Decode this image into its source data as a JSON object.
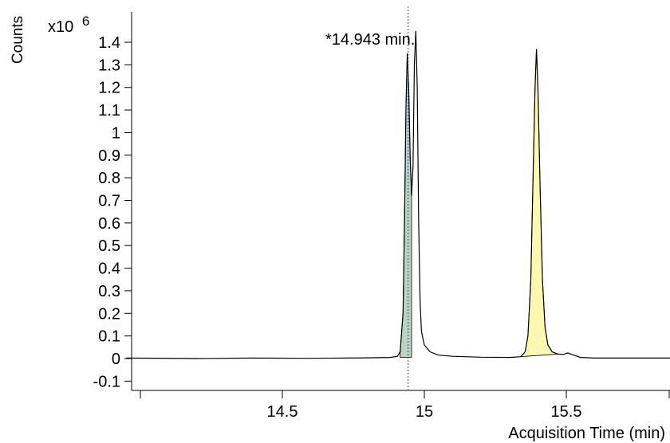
{
  "chart_data": {
    "type": "line",
    "title": "",
    "header_fragment": "",
    "xlabel": "Acquisition Time (min)",
    "ylabel": "Counts",
    "y_multiplier": "x10",
    "y_exponent": "6",
    "xlim": [
      14.0,
      15.9
    ],
    "ylim": [
      -0.16,
      1.55
    ],
    "x_ticks": [
      14.5,
      15,
      15.5
    ],
    "x_tick_labels": [
      "14.5",
      "15",
      "15.5"
    ],
    "x_minor_ticks": [
      14.0,
      15.9
    ],
    "y_ticks": [
      -0.1,
      0,
      0.1,
      0.2,
      0.3,
      0.4,
      0.5,
      0.6,
      0.7,
      0.8,
      0.9,
      1,
      1.1,
      1.2,
      1.3,
      1.4
    ],
    "y_tick_labels": [
      "-0.1",
      "0",
      "0.1",
      "0.2",
      "0.3",
      "0.4",
      "0.5",
      "0.6",
      "0.7",
      "0.8",
      "0.9",
      "1",
      "1.1",
      "1.2",
      "1.3",
      "1.4"
    ],
    "grid": false,
    "marker": {
      "x": 14.943,
      "label": "*14.943 min.",
      "color": "#3a3aa8"
    },
    "series": [
      {
        "points": [
          [
            13.95,
            0.002
          ],
          [
            14.2,
            0.0
          ],
          [
            14.4,
            0.002
          ],
          [
            14.6,
            0.001
          ],
          [
            14.8,
            0.003
          ],
          [
            14.88,
            0.005
          ],
          [
            14.905,
            0.01
          ],
          [
            14.915,
            0.03
          ],
          [
            14.925,
            0.2
          ],
          [
            14.93,
            0.6
          ],
          [
            14.935,
            1.1
          ],
          [
            14.94,
            1.35
          ],
          [
            14.945,
            1.2
          ],
          [
            14.95,
            0.9
          ],
          [
            14.955,
            0.72
          ],
          [
            14.96,
            0.85
          ],
          [
            14.965,
            1.3
          ],
          [
            14.97,
            1.45
          ],
          [
            14.975,
            1.2
          ],
          [
            14.98,
            0.6
          ],
          [
            14.985,
            0.25
          ],
          [
            14.99,
            0.12
          ],
          [
            15.0,
            0.06
          ],
          [
            15.02,
            0.03
          ],
          [
            15.05,
            0.015
          ],
          [
            15.1,
            0.01
          ],
          [
            15.2,
            0.006
          ],
          [
            15.3,
            0.005
          ],
          [
            15.34,
            0.008
          ],
          [
            15.355,
            0.03
          ],
          [
            15.365,
            0.1
          ],
          [
            15.375,
            0.35
          ],
          [
            15.383,
            0.8
          ],
          [
            15.39,
            1.2
          ],
          [
            15.395,
            1.37
          ],
          [
            15.4,
            1.2
          ],
          [
            15.408,
            0.75
          ],
          [
            15.416,
            0.35
          ],
          [
            15.425,
            0.14
          ],
          [
            15.435,
            0.06
          ],
          [
            15.45,
            0.03
          ],
          [
            15.47,
            0.02
          ],
          [
            15.49,
            0.018
          ],
          [
            15.505,
            0.025
          ],
          [
            15.52,
            0.018
          ],
          [
            15.55,
            0.005
          ],
          [
            15.6,
            0.002
          ],
          [
            15.8,
            0.002
          ],
          [
            15.9,
            0.002
          ]
        ],
        "color": "#000000"
      }
    ],
    "shaded_peaks": [
      {
        "x_range": [
          14.915,
          14.955
        ],
        "points": [
          [
            14.915,
            0.03
          ],
          [
            14.925,
            0.2
          ],
          [
            14.93,
            0.6
          ],
          [
            14.935,
            1.1
          ],
          [
            14.94,
            1.35
          ],
          [
            14.945,
            1.2
          ],
          [
            14.95,
            0.9
          ],
          [
            14.955,
            0.72
          ]
        ],
        "baseline": [
          0.005,
          0.005
        ],
        "color": "#b9d4c0"
      },
      {
        "x_range": [
          15.34,
          15.475
        ],
        "points": [
          [
            15.34,
            0.008
          ],
          [
            15.355,
            0.03
          ],
          [
            15.365,
            0.1
          ],
          [
            15.375,
            0.35
          ],
          [
            15.383,
            0.8
          ],
          [
            15.39,
            1.2
          ],
          [
            15.395,
            1.37
          ],
          [
            15.4,
            1.2
          ],
          [
            15.408,
            0.75
          ],
          [
            15.416,
            0.35
          ],
          [
            15.425,
            0.14
          ],
          [
            15.435,
            0.06
          ],
          [
            15.45,
            0.03
          ],
          [
            15.47,
            0.02
          ],
          [
            15.475,
            0.02
          ]
        ],
        "baseline": [
          0.008,
          0.02
        ],
        "color": "#fbf9b0"
      }
    ]
  }
}
